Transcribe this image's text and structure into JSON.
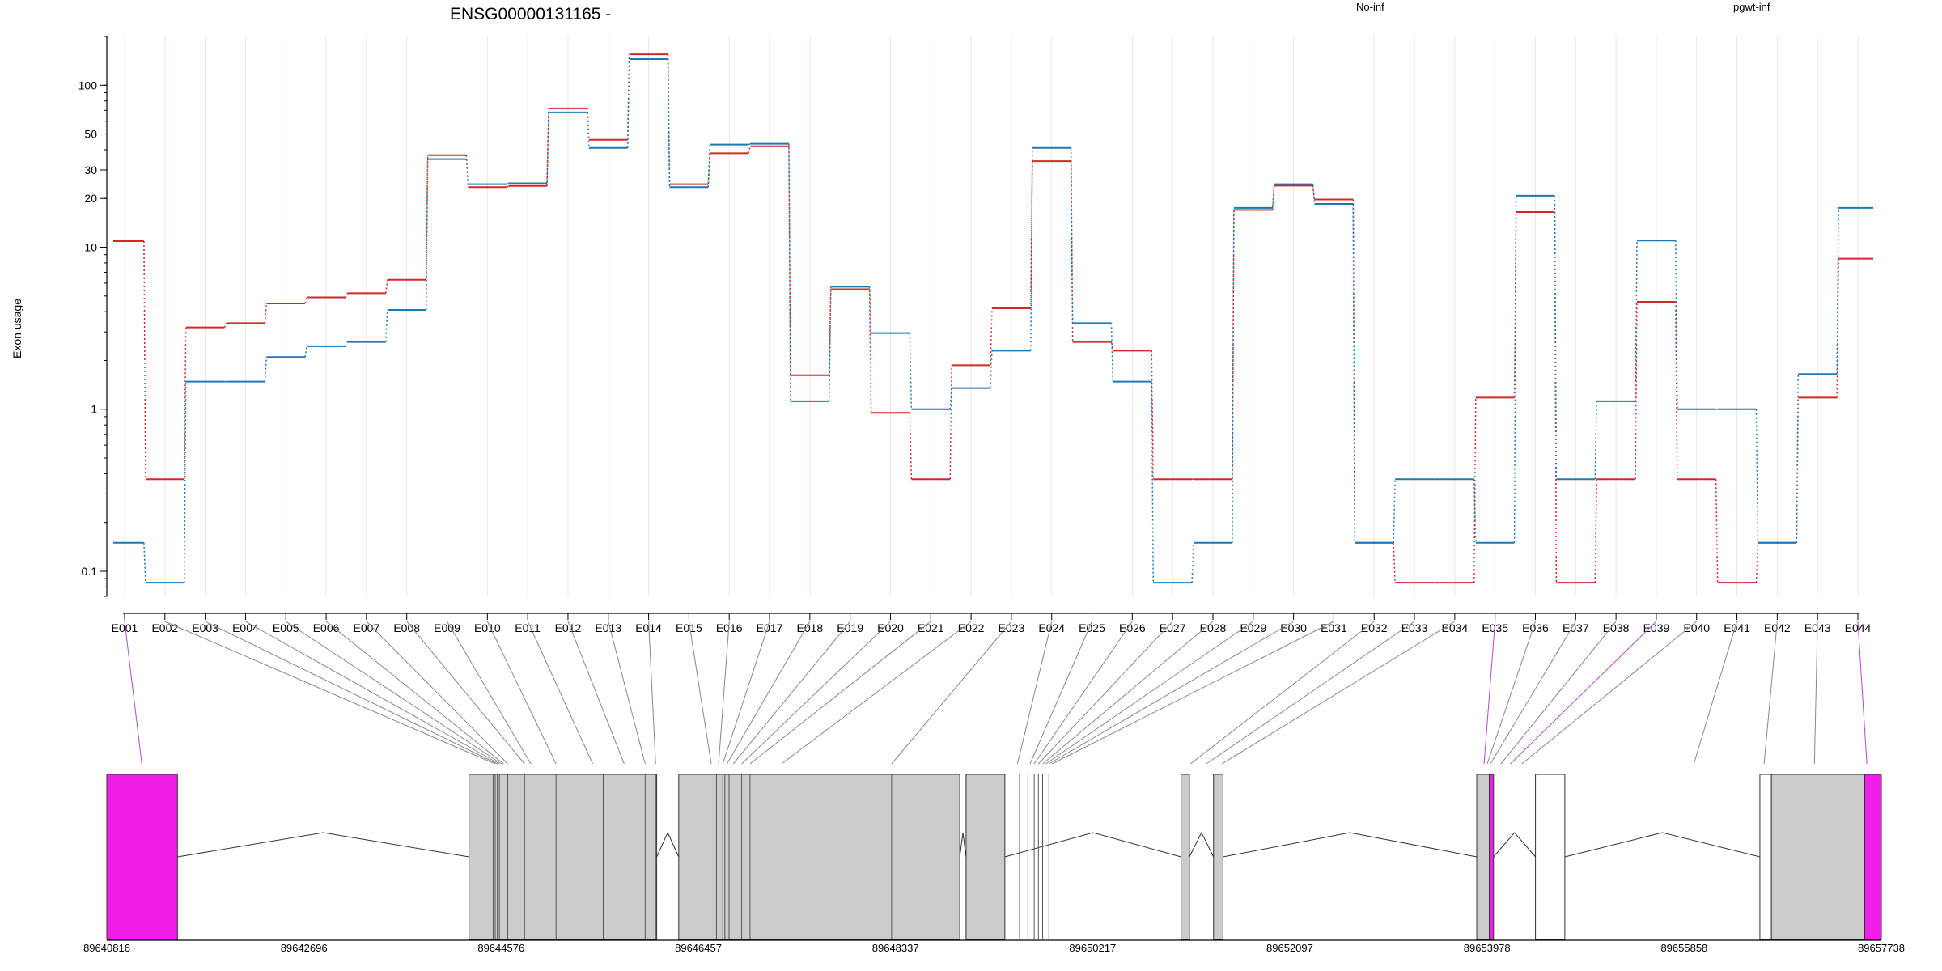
{
  "title": "ENSG00000131165 -",
  "legend": [
    {
      "name": "No-inf",
      "color": "#d62728"
    },
    {
      "name": "pgwt-inf",
      "color": "#1f77b4"
    }
  ],
  "ylabel": "Exon usage",
  "highlight_color": "#f01ee8",
  "chart_data": {
    "type": "line",
    "scale": "log",
    "ylim": [
      0.07,
      200
    ],
    "yticks": [
      0.1,
      1,
      10,
      20,
      30,
      50,
      100
    ],
    "ytick_labels": [
      "0.1",
      "1",
      "10",
      "20",
      "30",
      "50",
      "100"
    ],
    "categories": [
      "E001",
      "E002",
      "E003",
      "E004",
      "E005",
      "E006",
      "E007",
      "E008",
      "E009",
      "E010",
      "E011",
      "E012",
      "E013",
      "E014",
      "E015",
      "E016",
      "E017",
      "E018",
      "E019",
      "E020",
      "E021",
      "E022",
      "E023",
      "E024",
      "E025",
      "E026",
      "E027",
      "E028",
      "E029",
      "E030",
      "E031",
      "E032",
      "E033",
      "E034",
      "E035",
      "E036",
      "E037",
      "E038",
      "E039",
      "E040",
      "E041",
      "E042",
      "E043",
      "E044"
    ],
    "series": [
      {
        "name": "No-inf",
        "color": "#d62728",
        "values": [
          10.9,
          0.37,
          3.2,
          3.4,
          4.5,
          4.9,
          5.2,
          6.3,
          37,
          23.5,
          23.9,
          72,
          46,
          155,
          24.5,
          38,
          42,
          1.62,
          5.5,
          0.95,
          0.37,
          1.87,
          4.2,
          34,
          2.6,
          2.3,
          0.37,
          0.37,
          17,
          24,
          19.7,
          0.15,
          0.085,
          0.085,
          1.18,
          16.5,
          0.085,
          0.37,
          4.6,
          0.37,
          0.085,
          0.15,
          1.18,
          8.5
        ]
      },
      {
        "name": "pgwt-inf",
        "color": "#1f77b4",
        "values": [
          0.15,
          0.085,
          1.48,
          1.48,
          2.1,
          2.45,
          2.6,
          4.1,
          35,
          24.5,
          24.8,
          68,
          41,
          145,
          23.5,
          43,
          43.5,
          1.12,
          5.7,
          2.95,
          1.0,
          1.35,
          2.3,
          41,
          3.4,
          1.48,
          0.085,
          0.15,
          17.5,
          24.5,
          18.5,
          0.15,
          0.37,
          0.37,
          0.15,
          20.8,
          0.37,
          1.12,
          11,
          1.0,
          1.0,
          0.15,
          1.65,
          17.5
        ]
      }
    ]
  },
  "gene_model": {
    "range": [
      89640816,
      89657738
    ],
    "ticks": [
      89640816,
      89642696,
      89644576,
      89646457,
      89648337,
      89650217,
      89652097,
      89653978,
      89655858,
      89657738
    ],
    "tick_labels": [
      "89640816",
      "89642696",
      "89644576",
      "89646457",
      "89648337",
      "89650217",
      "89652097",
      "89653978",
      "89655858",
      "89657738"
    ],
    "exon_anchor_genomic": [
      89641150,
      89644520,
      89644540,
      89644560,
      89644580,
      89644600,
      89644640,
      89644800,
      89644860,
      89645100,
      89645450,
      89645750,
      89645950,
      89646050,
      89646580,
      89646650,
      89646690,
      89646730,
      89646790,
      89646870,
      89646950,
      89647250,
      89648300,
      89649500,
      89649620,
      89649660,
      89649700,
      89649740,
      89649770,
      89649800,
      89649830,
      89651150,
      89651300,
      89651450,
      89653950,
      89653980,
      89654010,
      89654110,
      89654200,
      89654310,
      89655950,
      89656620,
      89657100,
      89657600
    ]
  },
  "transcripts": [
    {
      "blocks": [
        [
          89640816,
          89641490,
          "h"
        ],
        [
          89644270,
          89646060,
          "e"
        ],
        [
          89646270,
          89648950,
          "e"
        ],
        [
          89649010,
          89649380,
          "e"
        ],
        [
          89651060,
          89651140,
          "e"
        ],
        [
          89651370,
          89651460,
          "e"
        ],
        [
          89653880,
          89654000,
          "e"
        ],
        [
          89654000,
          89654040,
          "h"
        ],
        [
          89654440,
          89654720,
          "o"
        ],
        [
          89656580,
          89656690,
          "o"
        ],
        [
          89656690,
          89657580,
          "e"
        ],
        [
          89657580,
          89657738,
          "h"
        ]
      ],
      "lines": [
        89644500,
        89644520,
        89644540,
        89644560,
        89644640,
        89644800,
        89645100,
        89645550,
        89645950,
        89646050,
        89646630,
        89646690,
        89646710,
        89646750,
        89646870,
        89646950,
        89648300,
        89649520,
        89649600,
        89649660,
        89649700,
        89649740,
        89649800
      ]
    }
  ]
}
